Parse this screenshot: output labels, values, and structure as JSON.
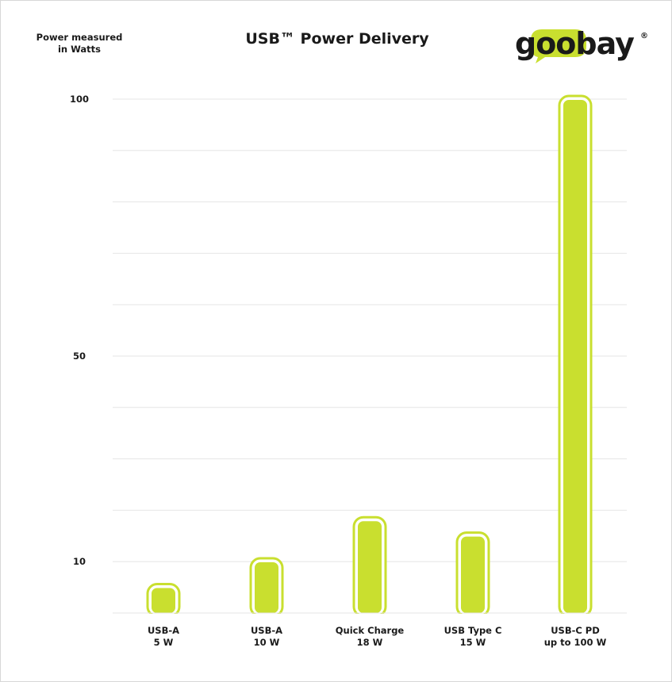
{
  "header": {
    "title": "USB™ Power Delivery",
    "ylabel_line1": "Power measured",
    "ylabel_line2": "in Watts",
    "logo_text": "goobay",
    "logo_mark": "®"
  },
  "colors": {
    "bar": "#c9df2f",
    "text": "#1a1a1a",
    "grid": "#e6e6e6",
    "logo_accent": "#c9df2f"
  },
  "chart_data": {
    "type": "bar",
    "title": "USB™ Power Delivery",
    "ylabel": "Power measured in Watts",
    "xlabel": "",
    "categories": [
      "USB-A 5 W",
      "USB-A 10 W",
      "Quick Charge 18 W",
      "USB Type C 15 W",
      "USB-C PD up to 100 W"
    ],
    "category_lines": [
      [
        "USB-A",
        "5 W"
      ],
      [
        "USB-A",
        "10 W"
      ],
      [
        "Quick Charge",
        "18 W"
      ],
      [
        "USB Type C",
        "15 W"
      ],
      [
        "USB-C PD",
        "up to 100 W"
      ]
    ],
    "values": [
      5,
      10,
      18,
      15,
      100
    ],
    "yticks": [
      {
        "label": "100",
        "value": 100
      },
      {
        "label": "50",
        "value": 50
      },
      {
        "label": "10",
        "value": 10
      }
    ],
    "grid": true,
    "scale": "non-linear"
  }
}
